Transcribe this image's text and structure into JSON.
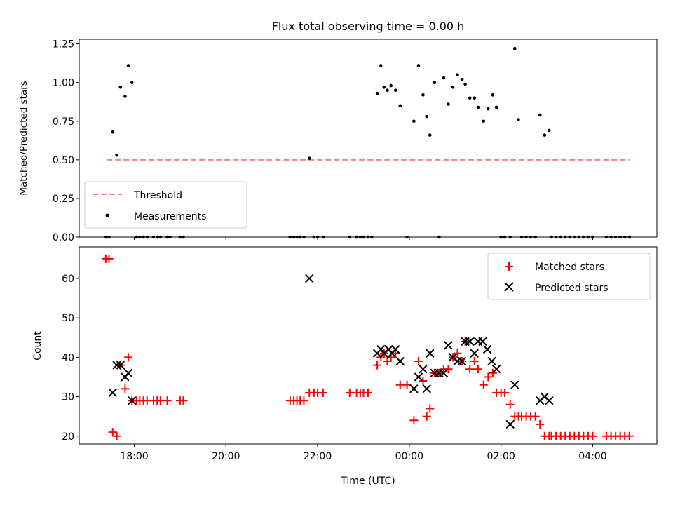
{
  "colors": {
    "matched": "#ff0000",
    "predicted": "#000000",
    "threshold": "#ff7f7f",
    "measurement": "#000000"
  },
  "chart_data": [
    {
      "type": "scatter",
      "title": "Flux total observing time = 0.00 h",
      "xlabel": "",
      "ylabel": "Matched/Predicted stars",
      "xlim": [
        16.8,
        29.4
      ],
      "ylim": [
        0,
        1.28
      ],
      "yticks": [
        0,
        0.25,
        0.5,
        0.75,
        1.0,
        1.25
      ],
      "ytick_labels": [
        "0.00",
        "0.25",
        "0.50",
        "0.75",
        "1.00",
        "1.25"
      ],
      "legend_position": "lower-left",
      "series": [
        {
          "name": "Threshold",
          "kind": "dashed-line",
          "x": [
            17.4,
            28.8
          ],
          "y": [
            0.5,
            0.5
          ]
        },
        {
          "name": "Measurements",
          "kind": "points",
          "points": [
            [
              17.38,
              0
            ],
            [
              17.45,
              0
            ],
            [
              17.53,
              0.68
            ],
            [
              17.62,
              0.53
            ],
            [
              17.7,
              0.97
            ],
            [
              17.8,
              0.91
            ],
            [
              17.87,
              1.11
            ],
            [
              17.95,
              1.0
            ],
            [
              18.05,
              0
            ],
            [
              18.12,
              0
            ],
            [
              18.2,
              0
            ],
            [
              18.28,
              0
            ],
            [
              18.42,
              0
            ],
            [
              18.5,
              0
            ],
            [
              18.57,
              0
            ],
            [
              18.72,
              0
            ],
            [
              18.78,
              0
            ],
            [
              19.0,
              0
            ],
            [
              19.07,
              0
            ],
            [
              21.4,
              0
            ],
            [
              21.48,
              0
            ],
            [
              21.55,
              0
            ],
            [
              21.62,
              0
            ],
            [
              21.7,
              0
            ],
            [
              21.82,
              0.51
            ],
            [
              21.92,
              0
            ],
            [
              22.0,
              0
            ],
            [
              22.12,
              0
            ],
            [
              22.7,
              0
            ],
            [
              22.85,
              0
            ],
            [
              22.93,
              0
            ],
            [
              23.0,
              0
            ],
            [
              23.1,
              0
            ],
            [
              23.18,
              0
            ],
            [
              23.3,
              0.93
            ],
            [
              23.38,
              1.11
            ],
            [
              23.45,
              0.97
            ],
            [
              23.52,
              0.95
            ],
            [
              23.6,
              0.98
            ],
            [
              23.7,
              0.95
            ],
            [
              23.8,
              0.85
            ],
            [
              23.95,
              0
            ],
            [
              24.1,
              0.75
            ],
            [
              24.2,
              1.11
            ],
            [
              24.3,
              0.92
            ],
            [
              24.38,
              0.78
            ],
            [
              24.45,
              0.66
            ],
            [
              24.55,
              1.0
            ],
            [
              24.65,
              0
            ],
            [
              24.75,
              1.03
            ],
            [
              24.85,
              0.86
            ],
            [
              24.95,
              0.97
            ],
            [
              25.05,
              1.05
            ],
            [
              25.15,
              1.02
            ],
            [
              25.22,
              0.99
            ],
            [
              25.32,
              0.9
            ],
            [
              25.42,
              0.9
            ],
            [
              25.5,
              0.84
            ],
            [
              25.62,
              0.75
            ],
            [
              25.72,
              0.83
            ],
            [
              25.82,
              0.92
            ],
            [
              25.9,
              0.84
            ],
            [
              26.0,
              0
            ],
            [
              26.08,
              0
            ],
            [
              26.2,
              0
            ],
            [
              26.3,
              1.22
            ],
            [
              26.38,
              0.76
            ],
            [
              26.45,
              0
            ],
            [
              26.55,
              0
            ],
            [
              26.65,
              0
            ],
            [
              26.75,
              0
            ],
            [
              26.85,
              0.79
            ],
            [
              26.95,
              0.66
            ],
            [
              27.05,
              0.69
            ],
            [
              27.1,
              0
            ],
            [
              27.2,
              0
            ],
            [
              27.3,
              0
            ],
            [
              27.4,
              0
            ],
            [
              27.5,
              0
            ],
            [
              27.6,
              0
            ],
            [
              27.7,
              0
            ],
            [
              27.8,
              0
            ],
            [
              27.9,
              0
            ],
            [
              28.0,
              0
            ],
            [
              28.3,
              0
            ],
            [
              28.4,
              0
            ],
            [
              28.5,
              0
            ],
            [
              28.6,
              0
            ],
            [
              28.7,
              0
            ],
            [
              28.8,
              0
            ]
          ]
        }
      ]
    },
    {
      "type": "scatter",
      "title": "",
      "xlabel": "Time (UTC)",
      "ylabel": "Count",
      "xlim": [
        16.8,
        29.4
      ],
      "ylim": [
        18,
        68
      ],
      "xticks": [
        18,
        20,
        22,
        24,
        26,
        28
      ],
      "xtick_labels": [
        "18:00",
        "20:00",
        "22:00",
        "00:00",
        "02:00",
        "04:00"
      ],
      "yticks": [
        20,
        30,
        40,
        50,
        60
      ],
      "ytick_labels": [
        "20",
        "30",
        "40",
        "50",
        "60"
      ],
      "legend_position": "top-right",
      "series": [
        {
          "name": "Matched stars",
          "marker": "plus",
          "points": [
            [
              17.38,
              65
            ],
            [
              17.45,
              65
            ],
            [
              17.53,
              21
            ],
            [
              17.62,
              20
            ],
            [
              17.7,
              38
            ],
            [
              17.8,
              32
            ],
            [
              17.87,
              40
            ],
            [
              17.95,
              29
            ],
            [
              18.05,
              29
            ],
            [
              18.12,
              29
            ],
            [
              18.2,
              29
            ],
            [
              18.28,
              29
            ],
            [
              18.42,
              29
            ],
            [
              18.5,
              29
            ],
            [
              18.57,
              29
            ],
            [
              18.72,
              29
            ],
            [
              19.0,
              29
            ],
            [
              19.07,
              29
            ],
            [
              21.4,
              29
            ],
            [
              21.48,
              29
            ],
            [
              21.55,
              29
            ],
            [
              21.62,
              29
            ],
            [
              21.7,
              29
            ],
            [
              21.82,
              31
            ],
            [
              21.92,
              31
            ],
            [
              22.0,
              31
            ],
            [
              22.12,
              31
            ],
            [
              22.7,
              31
            ],
            [
              22.85,
              31
            ],
            [
              22.93,
              31
            ],
            [
              23.0,
              31
            ],
            [
              23.1,
              31
            ],
            [
              23.3,
              38
            ],
            [
              23.38,
              40
            ],
            [
              23.45,
              41
            ],
            [
              23.52,
              39
            ],
            [
              23.6,
              40
            ],
            [
              23.7,
              41
            ],
            [
              23.8,
              33
            ],
            [
              23.95,
              33
            ],
            [
              24.1,
              24
            ],
            [
              24.2,
              39
            ],
            [
              24.3,
              34
            ],
            [
              24.38,
              25
            ],
            [
              24.45,
              27
            ],
            [
              24.55,
              36
            ],
            [
              24.65,
              36
            ],
            [
              24.75,
              37
            ],
            [
              24.85,
              37
            ],
            [
              24.95,
              40
            ],
            [
              25.05,
              41
            ],
            [
              25.15,
              39
            ],
            [
              25.22,
              44
            ],
            [
              25.32,
              37
            ],
            [
              25.42,
              39
            ],
            [
              25.5,
              37
            ],
            [
              25.62,
              33
            ],
            [
              25.72,
              35
            ],
            [
              25.82,
              36
            ],
            [
              25.9,
              31
            ],
            [
              26.0,
              31
            ],
            [
              26.08,
              31
            ],
            [
              26.2,
              28
            ],
            [
              26.3,
              25
            ],
            [
              26.38,
              25
            ],
            [
              26.45,
              25
            ],
            [
              26.55,
              25
            ],
            [
              26.65,
              25
            ],
            [
              26.75,
              25
            ],
            [
              26.85,
              23
            ],
            [
              26.95,
              20
            ],
            [
              27.05,
              20
            ],
            [
              27.1,
              20
            ],
            [
              27.2,
              20
            ],
            [
              27.3,
              20
            ],
            [
              27.4,
              20
            ],
            [
              27.5,
              20
            ],
            [
              27.6,
              20
            ],
            [
              27.7,
              20
            ],
            [
              27.8,
              20
            ],
            [
              27.9,
              20
            ],
            [
              28.0,
              20
            ],
            [
              28.3,
              20
            ],
            [
              28.4,
              20
            ],
            [
              28.5,
              20
            ],
            [
              28.6,
              20
            ],
            [
              28.7,
              20
            ],
            [
              28.8,
              20
            ]
          ]
        },
        {
          "name": "Predicted stars",
          "marker": "x",
          "points": [
            [
              17.53,
              31
            ],
            [
              17.62,
              38
            ],
            [
              17.7,
              38
            ],
            [
              17.8,
              35
            ],
            [
              17.87,
              36
            ],
            [
              17.95,
              29
            ],
            [
              21.82,
              60
            ],
            [
              23.3,
              41
            ],
            [
              23.38,
              42
            ],
            [
              23.45,
              41
            ],
            [
              23.55,
              42
            ],
            [
              23.62,
              41
            ],
            [
              23.7,
              42
            ],
            [
              23.8,
              39
            ],
            [
              24.1,
              32
            ],
            [
              24.2,
              35
            ],
            [
              24.3,
              37
            ],
            [
              24.38,
              32
            ],
            [
              24.45,
              41
            ],
            [
              24.55,
              36
            ],
            [
              24.65,
              36
            ],
            [
              24.75,
              36
            ],
            [
              24.85,
              43
            ],
            [
              24.95,
              40
            ],
            [
              25.05,
              39
            ],
            [
              25.15,
              39
            ],
            [
              25.22,
              44
            ],
            [
              25.32,
              44
            ],
            [
              25.42,
              41
            ],
            [
              25.5,
              44
            ],
            [
              25.6,
              44
            ],
            [
              25.7,
              42
            ],
            [
              25.8,
              39
            ],
            [
              25.9,
              37
            ],
            [
              26.2,
              23
            ],
            [
              26.3,
              33
            ],
            [
              26.85,
              29
            ],
            [
              26.95,
              30
            ],
            [
              27.05,
              29
            ]
          ]
        }
      ]
    }
  ]
}
